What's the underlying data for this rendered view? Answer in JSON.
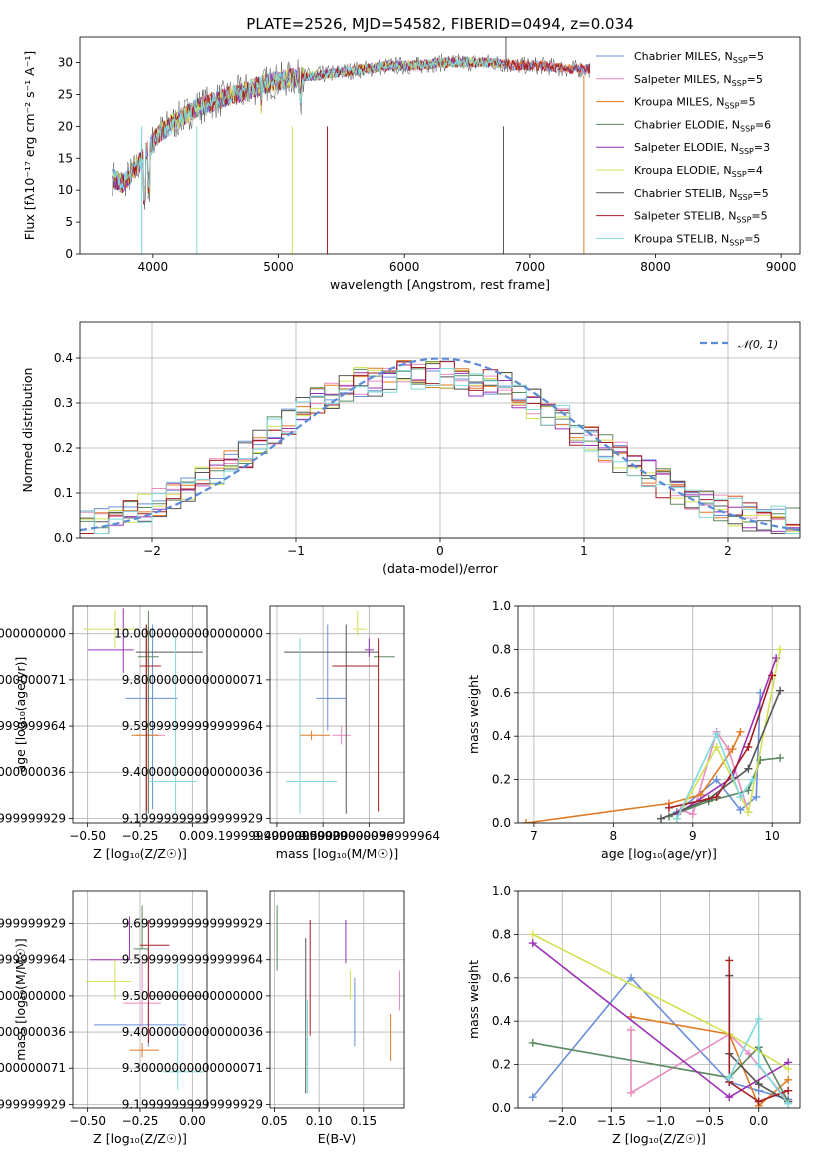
{
  "colors": [
    "#6a8fd8",
    "#e88bbf",
    "#e07b25",
    "#5a8a60",
    "#9b30b5",
    "#d4e055",
    "#555555",
    "#a41e22",
    "#7fd9dc"
  ],
  "chart_data": [
    {
      "id": "spectrum",
      "type": "line",
      "title": "PLATE=2526, MJD=54582, FIBERID=0494, z=0.034",
      "xlabel": "wavelength [Angstrom, rest frame]",
      "ylabel": "Flux [fλ10⁻¹⁷ erg cm⁻² s⁻¹ A⁻¹]",
      "xlim": [
        3420,
        9150
      ],
      "ylim": [
        0,
        34
      ],
      "xticks": [
        4000,
        5000,
        6000,
        7000,
        8000,
        9000
      ],
      "yticks": [
        0,
        5,
        10,
        15,
        20,
        25,
        30
      ],
      "legend_position": "top-right",
      "grid": false,
      "envelope": {
        "x": [
          3680,
          3750,
          3850,
          3950,
          4050,
          4200,
          4350,
          4500,
          4650,
          4800,
          4950,
          5100,
          5300,
          5500,
          5700,
          5900,
          6100,
          6300,
          6500,
          6700,
          6900,
          7100,
          7300,
          7420,
          7480
        ],
        "y": [
          12,
          11,
          13,
          16,
          19,
          21,
          23,
          24,
          25,
          26,
          27,
          27.5,
          28,
          28.5,
          29,
          29.5,
          29.5,
          30,
          30,
          30,
          29.5,
          29.5,
          29,
          29,
          29
        ]
      },
      "series": [
        {
          "name": "Chabrier MILES, N_SSP=5",
          "end": 7480
        },
        {
          "name": "Salpeter MILES, N_SSP=5",
          "end": 7480
        },
        {
          "name": "Kroupa MILES, N_SSP=5",
          "end": 7430
        },
        {
          "name": "Chabrier ELODIE, N_SSP=6",
          "end": 6800
        },
        {
          "name": "Salpeter ELODIE, N_SSP=3",
          "end": 6800
        },
        {
          "name": "Kroupa ELODIE, N_SSP=4",
          "end": 6800
        },
        {
          "name": "Chabrier STELIB, N_SSP=5",
          "end": 7480
        },
        {
          "name": "Salpeter STELIB, N_SSP=5",
          "end": 7480
        },
        {
          "name": "Kroupa STELIB, N_SSP=5",
          "end": 6800
        }
      ]
    },
    {
      "id": "residuals",
      "type": "histogram",
      "xlabel": "(data-model)/error",
      "ylabel": "Normed distribution",
      "xlim": [
        -2.5,
        2.5
      ],
      "ylim": [
        0,
        0.48
      ],
      "xticks": [
        -2,
        -1,
        0,
        1,
        2
      ],
      "yticks": [
        0.0,
        0.1,
        0.2,
        0.3,
        0.4
      ],
      "bin_edges_start": -2.5,
      "bin_width": 0.1,
      "grid": true,
      "legend_position": "top-right",
      "reference_curve": {
        "name": "𝒩(0, 1)",
        "mean": 0,
        "sigma": 1
      },
      "envelope": [
        0.03,
        0.035,
        0.045,
        0.055,
        0.065,
        0.08,
        0.095,
        0.11,
        0.13,
        0.15,
        0.17,
        0.19,
        0.21,
        0.235,
        0.26,
        0.28,
        0.3,
        0.32,
        0.335,
        0.345,
        0.35,
        0.355,
        0.36,
        0.36,
        0.36,
        0.36,
        0.355,
        0.35,
        0.345,
        0.335,
        0.32,
        0.3,
        0.28,
        0.26,
        0.24,
        0.22,
        0.2,
        0.18,
        0.16,
        0.14,
        0.12,
        0.1,
        0.09,
        0.08,
        0.07,
        0.06,
        0.05,
        0.045,
        0.04,
        0.035
      ]
    },
    {
      "id": "age-vs-Z",
      "type": "scatter",
      "xlabel": "Z [log₁₀(Z/Z☉)]",
      "ylabel": "age  [log₁₀(age/yr)]",
      "xlim": [
        -0.57,
        0.07
      ],
      "ylim": [
        9.18,
        10.12
      ],
      "xticks": [
        -0.5,
        -0.25,
        0.0
      ],
      "yticks": [
        9.2,
        9.4,
        9.6,
        9.8,
        10.0
      ],
      "grid": true,
      "points": [
        {
          "x": -0.19,
          "y": 9.72,
          "xerr": [
            0.13,
            0.12
          ],
          "yerr": [
            0.48,
            0.32
          ]
        },
        {
          "x": -0.21,
          "y": 9.56,
          "xerr": [
            0.06,
            0.08
          ],
          "yerr": [
            0.33,
            0.46
          ]
        },
        {
          "x": -0.21,
          "y": 9.56,
          "xerr": [
            0.08,
            0.05
          ],
          "yerr": [
            0.33,
            0.47
          ]
        },
        {
          "x": -0.21,
          "y": 9.9,
          "xerr": [
            0.05,
            0.05
          ],
          "yerr": [
            0.68,
            0.2
          ]
        },
        {
          "x": -0.33,
          "y": 9.93,
          "xerr": [
            0.17,
            0.05
          ],
          "yerr": [
            0.1,
            0.18
          ]
        },
        {
          "x": -0.37,
          "y": 10.02,
          "xerr": [
            0.15,
            0.1
          ],
          "yerr": [
            0.08,
            0.08
          ]
        },
        {
          "x": -0.22,
          "y": 9.92,
          "xerr": [
            0.05,
            0.27
          ],
          "yerr": [
            0.7,
            0.12
          ]
        },
        {
          "x": -0.22,
          "y": 9.86,
          "xerr": [
            0.03,
            0.07
          ],
          "yerr": [
            0.63,
            0.18
          ]
        },
        {
          "x": -0.08,
          "y": 9.36,
          "xerr": [
            0.13,
            0.1
          ],
          "yerr": [
            0.14,
            0.62
          ]
        }
      ]
    },
    {
      "id": "age-vs-mass",
      "type": "scatter",
      "xlabel": "mass [log₁₀(M/M☉)]",
      "ylabel": "",
      "xlim": [
        9.17,
        9.75
      ],
      "ylim": [
        9.18,
        10.12
      ],
      "xticks": [
        9.2,
        9.4,
        9.6
      ],
      "yticks": [
        9.2,
        9.4,
        9.6,
        9.8,
        10.0
      ],
      "grid": true,
      "points": [
        {
          "x": 9.42,
          "y": 9.72,
          "xerr": [
            0.05,
            0.08
          ],
          "yerr": [
            0.14,
            0.32
          ]
        },
        {
          "x": 9.48,
          "y": 9.56,
          "xerr": [
            0.04,
            0.04
          ],
          "yerr": [
            0.04,
            0.04
          ]
        },
        {
          "x": 9.35,
          "y": 9.56,
          "xerr": [
            0.05,
            0.08
          ],
          "yerr": [
            0.02,
            0.02
          ]
        },
        {
          "x": 9.64,
          "y": 9.9,
          "xerr": [
            0.02,
            0.07
          ],
          "yerr": [
            0.02,
            0.02
          ]
        },
        {
          "x": 9.6,
          "y": 9.93,
          "xerr": [
            0.02,
            0.02
          ],
          "yerr": [
            0.03,
            0.05
          ]
        },
        {
          "x": 9.55,
          "y": 10.02,
          "xerr": [
            0.02,
            0.04
          ],
          "yerr": [
            0.03,
            0.08
          ]
        },
        {
          "x": 9.5,
          "y": 9.92,
          "xerr": [
            0.27,
            0.14
          ],
          "yerr": [
            0.7,
            0.12
          ]
        },
        {
          "x": 9.64,
          "y": 9.86,
          "xerr": [
            0.2,
            0.0
          ],
          "yerr": [
            0.63,
            0.12
          ]
        },
        {
          "x": 9.3,
          "y": 9.36,
          "xerr": [
            0.06,
            0.16
          ],
          "yerr": [
            0.14,
            0.62
          ]
        }
      ]
    },
    {
      "id": "weight-vs-age",
      "type": "line",
      "xlabel": "age  [log₁₀(age/yr)]",
      "ylabel": "mass weight",
      "xlim": [
        6.8,
        10.35
      ],
      "ylim": [
        0.0,
        1.0
      ],
      "xticks": [
        7,
        8,
        9,
        10
      ],
      "yticks": [
        0.0,
        0.2,
        0.4,
        0.6,
        0.8,
        1.0
      ],
      "grid": true,
      "series": [
        {
          "x": [
            8.8,
            9.3,
            9.6,
            9.8,
            9.85
          ],
          "y": [
            0.05,
            0.2,
            0.06,
            0.12,
            0.6
          ]
        },
        {
          "x": [
            8.85,
            9.0,
            9.3,
            9.45,
            9.7
          ],
          "y": [
            0.06,
            0.04,
            0.42,
            0.34,
            0.05
          ]
        },
        {
          "x": [
            6.9,
            8.7,
            9.1,
            9.5,
            9.6
          ],
          "y": [
            0.0,
            0.09,
            0.13,
            0.34,
            0.42
          ]
        },
        {
          "x": [
            8.7,
            9.2,
            9.7,
            9.85,
            10.1
          ],
          "y": [
            0.03,
            0.1,
            0.15,
            0.29,
            0.3
          ]
        },
        {
          "x": [
            8.8,
            9.5,
            10.05
          ],
          "y": [
            0.04,
            0.21,
            0.76
          ]
        },
        {
          "x": [
            8.8,
            9.3,
            9.7,
            10.1
          ],
          "y": [
            0.02,
            0.35,
            0.05,
            0.8
          ]
        },
        {
          "x": [
            8.6,
            9.2,
            9.7,
            10.1
          ],
          "y": [
            0.02,
            0.11,
            0.25,
            0.61
          ]
        },
        {
          "x": [
            8.7,
            9.3,
            9.7,
            10.0
          ],
          "y": [
            0.07,
            0.12,
            0.35,
            0.68
          ]
        },
        {
          "x": [
            8.8,
            9.3,
            9.6,
            9.75
          ],
          "y": [
            0.02,
            0.41,
            0.12,
            0.2
          ]
        }
      ]
    },
    {
      "id": "mass-vs-Z",
      "type": "scatter",
      "xlabel": "Z [log₁₀(Z/Z☉)]",
      "ylabel": "mass [log₁₀(M/M☉)]",
      "xlim": [
        -0.57,
        0.07
      ],
      "ylim": [
        9.19,
        9.79
      ],
      "xticks": [
        -0.5,
        -0.25,
        0.0
      ],
      "yticks": [
        9.2,
        9.3,
        9.4,
        9.5,
        9.6,
        9.7
      ],
      "grid": true,
      "points": [
        {
          "x": -0.21,
          "y": 9.42,
          "xerr": [
            0.26,
            0.18
          ],
          "yerr": [
            0.06,
            0.06
          ]
        },
        {
          "x": -0.24,
          "y": 9.48,
          "xerr": [
            0.09,
            0.09
          ],
          "yerr": [
            0.08,
            0.12
          ]
        },
        {
          "x": -0.24,
          "y": 9.35,
          "xerr": [
            0.06,
            0.08
          ],
          "yerr": [
            0.02,
            0.02
          ]
        },
        {
          "x": -0.24,
          "y": 9.63,
          "xerr": [
            0.04,
            0.03
          ],
          "yerr": [
            0.0,
            0.12
          ]
        },
        {
          "x": -0.3,
          "y": 9.6,
          "xerr": [
            0.19,
            0.0
          ],
          "yerr": [
            0.0,
            0.12
          ]
        },
        {
          "x": -0.37,
          "y": 9.54,
          "xerr": [
            0.14,
            0.08
          ],
          "yerr": [
            0.05,
            0.06
          ]
        },
        {
          "x": -0.21,
          "y": 9.5,
          "xerr": [
            0.0,
            0.27
          ],
          "yerr": [
            0.0,
            0.13
          ]
        },
        {
          "x": -0.21,
          "y": 9.64,
          "xerr": [
            0.04,
            0.1
          ],
          "yerr": [
            0.27,
            0.07
          ]
        },
        {
          "x": -0.07,
          "y": 9.29,
          "xerr": [
            0.07,
            0.13
          ],
          "yerr": [
            0.05,
            0.3
          ]
        }
      ]
    },
    {
      "id": "mass-vs-EBV",
      "type": "scatter",
      "xlabel": "E(B-V)",
      "ylabel": "",
      "xlim": [
        0.045,
        0.195
      ],
      "ylim": [
        9.19,
        9.79
      ],
      "xticks": [
        0.05,
        0.1,
        0.15
      ],
      "yticks": [
        9.2,
        9.3,
        9.4,
        9.5,
        9.6,
        9.7
      ],
      "grid": true,
      "points": [
        {
          "x": 0.14,
          "y": 9.42,
          "xerr": [
            0,
            0
          ],
          "yerr": [
            0.06,
            0.13
          ]
        },
        {
          "x": 0.19,
          "y": 9.51,
          "xerr": [
            0,
            0
          ],
          "yerr": [
            0.05,
            0.06
          ]
        },
        {
          "x": 0.18,
          "y": 9.38,
          "xerr": [
            0,
            0
          ],
          "yerr": [
            0.06,
            0.07
          ]
        },
        {
          "x": 0.053,
          "y": 9.66,
          "xerr": [
            0,
            0
          ],
          "yerr": [
            0.09,
            0.09
          ]
        },
        {
          "x": 0.13,
          "y": 9.65,
          "xerr": [
            0,
            0
          ],
          "yerr": [
            0.06,
            0.06
          ]
        },
        {
          "x": 0.135,
          "y": 9.53,
          "xerr": [
            0,
            0
          ],
          "yerr": [
            0.04,
            0.04
          ]
        },
        {
          "x": 0.085,
          "y": 9.44,
          "xerr": [
            0,
            0
          ],
          "yerr": [
            0.21,
            0.22
          ]
        },
        {
          "x": 0.09,
          "y": 9.55,
          "xerr": [
            0,
            0
          ],
          "yerr": [
            0.16,
            0.16
          ]
        },
        {
          "x": 0.087,
          "y": 9.36,
          "xerr": [
            0,
            0
          ],
          "yerr": [
            0.13,
            0.13
          ]
        }
      ]
    },
    {
      "id": "weight-vs-Z",
      "type": "line",
      "xlabel": "Z [log₁₀(Z/Z☉)]",
      "ylabel": "mass weight",
      "xlim": [
        -2.45,
        0.42
      ],
      "ylim": [
        0.0,
        1.0
      ],
      "xticks": [
        -2.0,
        -1.5,
        -1.0,
        -0.5,
        0.0
      ],
      "yticks": [
        0.0,
        0.2,
        0.4,
        0.6,
        0.8,
        1.0
      ],
      "grid": true,
      "series": [
        {
          "x": [
            -2.3,
            -1.3,
            -0.3,
            0.0,
            0.3
          ],
          "y": [
            0.05,
            0.6,
            0.12,
            0.08,
            0.04
          ]
        },
        {
          "x": [
            -1.3,
            -1.3,
            -0.3,
            -0.1,
            0.3
          ],
          "y": [
            0.36,
            0.07,
            0.34,
            0.25,
            0.03
          ]
        },
        {
          "x": [
            -1.3,
            -0.3,
            0.0,
            0.3
          ],
          "y": [
            0.42,
            0.34,
            0.01,
            0.13
          ]
        },
        {
          "x": [
            -2.3,
            -0.3,
            0.0,
            0.3
          ],
          "y": [
            0.3,
            0.14,
            0.28,
            0.03
          ]
        },
        {
          "x": [
            -2.3,
            -0.3,
            0.3
          ],
          "y": [
            0.76,
            0.05,
            0.21
          ]
        },
        {
          "x": [
            -2.3,
            -0.3,
            0.3
          ],
          "y": [
            0.8,
            0.34,
            0.18
          ]
        },
        {
          "x": [
            -0.3,
            -0.3,
            0.0,
            0.3
          ],
          "y": [
            0.61,
            0.25,
            0.11,
            0.03
          ]
        },
        {
          "x": [
            -0.3,
            -0.3,
            0.0,
            0.3
          ],
          "y": [
            0.68,
            0.12,
            0.03,
            0.08
          ]
        },
        {
          "x": [
            -0.3,
            0.0,
            0.0,
            0.3
          ],
          "y": [
            0.14,
            0.41,
            0.2,
            0.02
          ]
        }
      ]
    }
  ]
}
